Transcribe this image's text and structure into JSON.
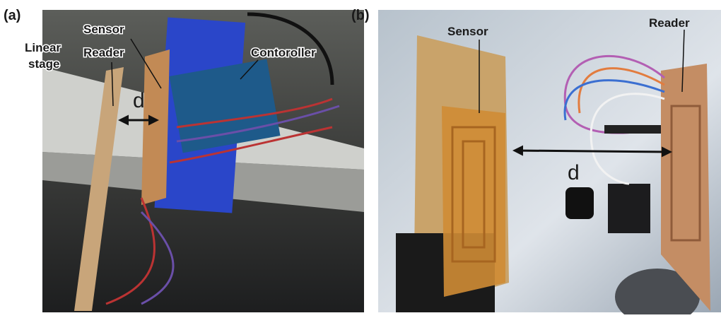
{
  "panels": [
    {
      "label": "(a)",
      "annotations": {
        "sensor": "Sensor",
        "linear_stage": [
          "Linear",
          "stage"
        ],
        "reader": "Reader",
        "controller": "Contoroller",
        "distance": "d"
      }
    },
    {
      "label": "(b)",
      "annotations": {
        "sensor": "Sensor",
        "reader": "Reader",
        "distance": "d"
      }
    }
  ]
}
